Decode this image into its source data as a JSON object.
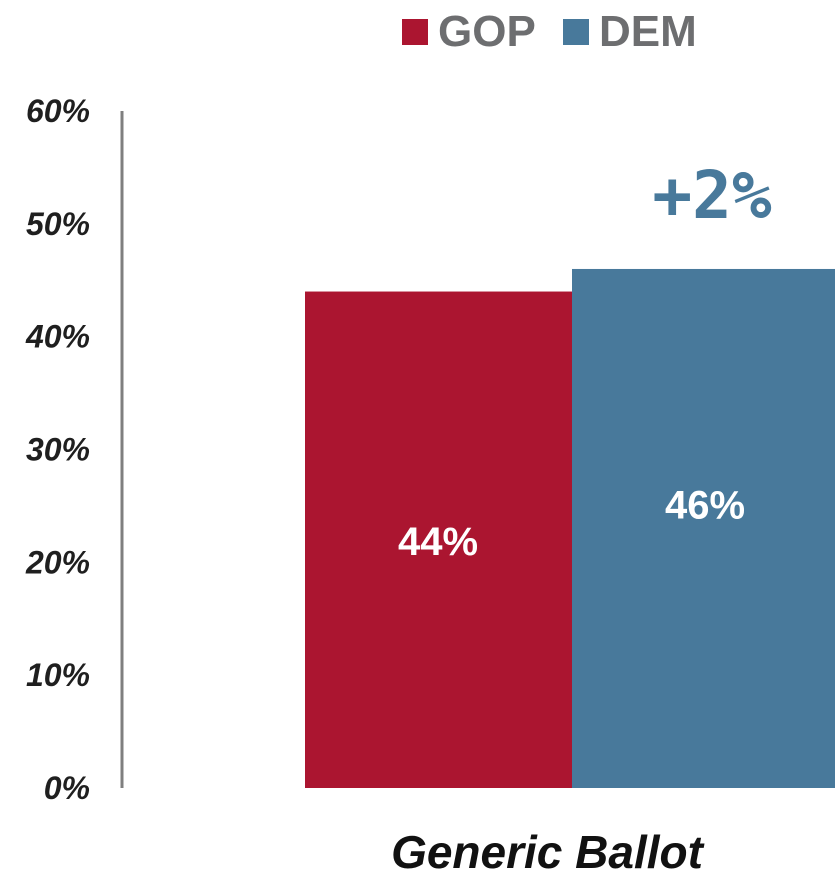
{
  "chart_data": {
    "type": "bar",
    "categories": [
      "Generic Ballot"
    ],
    "series": [
      {
        "name": "GOP",
        "values": [
          44
        ],
        "color": "#ab1530"
      },
      {
        "name": "DEM",
        "values": [
          46
        ],
        "color": "#48799b"
      }
    ],
    "data_labels": [
      "44%",
      "46%"
    ],
    "annotation": "+2%",
    "annotation_color": "#48799b",
    "ylim": [
      0,
      60
    ],
    "yticks": [
      0,
      10,
      20,
      30,
      40,
      50,
      60
    ],
    "ytick_labels": [
      "0%",
      "10%",
      "20%",
      "30%",
      "40%",
      "50%",
      "60%"
    ],
    "legend_position": "top",
    "grid": false,
    "title": "",
    "xlabel": "",
    "ylabel": ""
  }
}
